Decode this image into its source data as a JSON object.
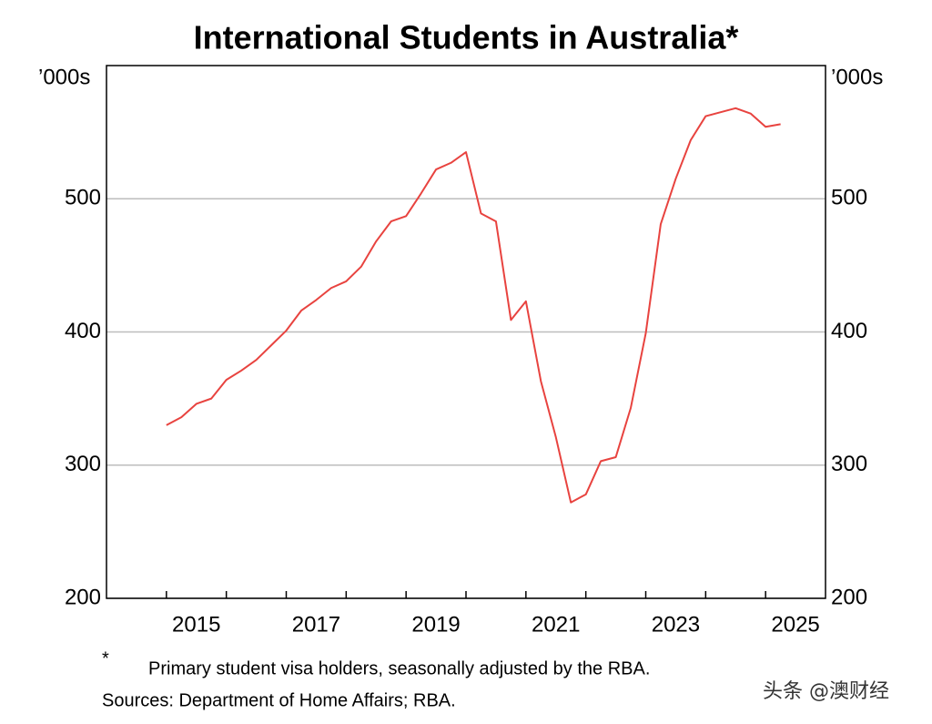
{
  "chart_data": {
    "type": "line",
    "title": "International Students in Australia*",
    "y_unit": "’000s",
    "y2_unit": "’000s",
    "footnote_mark": "*",
    "footnote": "Primary student visa holders, seasonally adjusted by the RBA.",
    "sources": "Sources: Department of Home Affairs; RBA.",
    "watermark": "头条 @澳财经",
    "xlim": [
      2014,
      2026
    ],
    "xticks": [
      {
        "value": 2015.5,
        "label": "2015"
      },
      {
        "value": 2017.5,
        "label": "2017"
      },
      {
        "value": 2019.5,
        "label": "2019"
      },
      {
        "value": 2021.5,
        "label": "2021"
      },
      {
        "value": 2023.5,
        "label": "2023"
      },
      {
        "value": 2025.5,
        "label": "2025"
      }
    ],
    "x_minor_ticks": [
      2015,
      2016,
      2017,
      2018,
      2019,
      2020,
      2021,
      2022,
      2023,
      2024,
      2025
    ],
    "ylim": [
      200,
      600
    ],
    "yticks": [
      200,
      300,
      400,
      500
    ],
    "y2lim": [
      200,
      600
    ],
    "y2ticks": [
      200,
      300,
      400,
      500
    ],
    "grid": true,
    "x": [
      2015,
      2015.25,
      2015.5,
      2015.75,
      2016,
      2016.25,
      2016.5,
      2016.75,
      2017,
      2017.25,
      2017.5,
      2017.75,
      2018,
      2018.25,
      2018.5,
      2018.75,
      2019,
      2019.25,
      2019.5,
      2019.75,
      2020,
      2020.25,
      2020.5,
      2020.75,
      2021,
      2021.25,
      2021.5,
      2021.75,
      2022,
      2022.25,
      2022.5,
      2022.75,
      2023,
      2023.25,
      2023.5,
      2023.75,
      2024,
      2024.25,
      2024.5,
      2024.75,
      2025,
      2025.25
    ],
    "series": [
      {
        "name": "International students",
        "color": "#e8433f",
        "values": [
          330,
          336,
          346,
          350,
          364,
          371,
          379,
          390,
          401,
          416,
          424,
          433,
          438,
          449,
          468,
          483,
          487,
          504,
          522,
          527,
          535,
          489,
          483,
          409,
          423,
          363,
          321,
          272,
          278,
          303,
          306,
          343,
          399,
          481,
          515,
          544,
          562,
          565,
          568,
          564,
          554,
          556
        ]
      }
    ]
  }
}
